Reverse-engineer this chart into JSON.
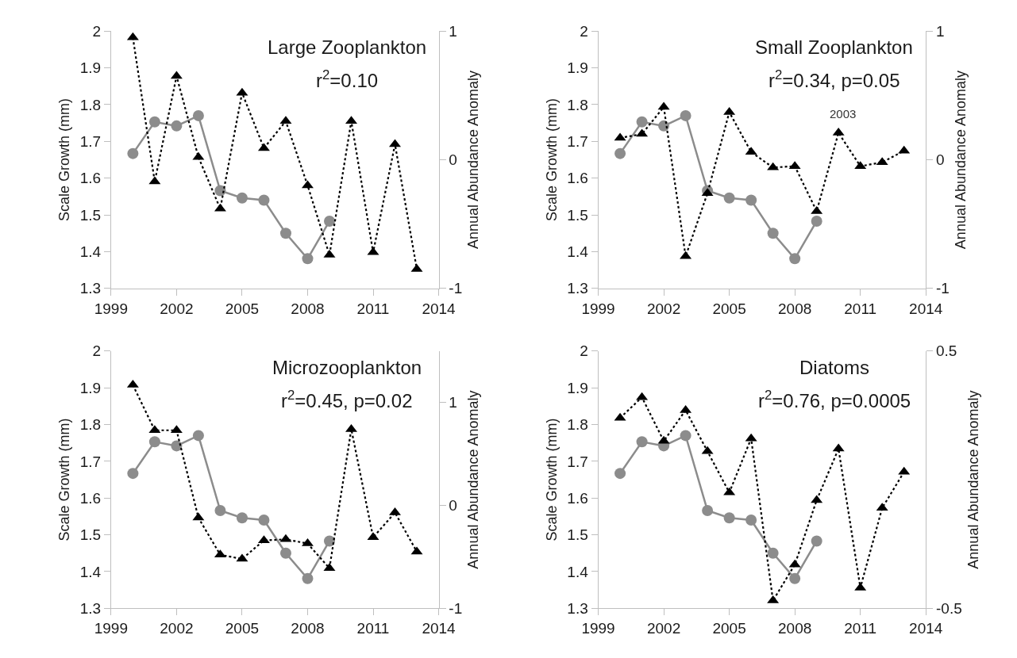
{
  "chart_data": [
    {
      "type": "line",
      "title": "Large Zooplankton",
      "subtitle": "r$^{2}$=0.10",
      "ylabel": "Scale Growth (mm)",
      "y2label": "Annual Abundance Anomaly",
      "xlim": [
        1999,
        2014
      ],
      "xticks": [
        1999,
        2002,
        2005,
        2008,
        2011,
        2014
      ],
      "ylim": [
        1.3,
        2
      ],
      "yticks": [
        1.3,
        1.4,
        1.5,
        1.6,
        1.7,
        1.8,
        1.9,
        2
      ],
      "y2lim": [
        -1,
        1
      ],
      "y2ticks": [
        -1,
        0,
        1
      ],
      "grid": false,
      "series": [
        {
          "color": "#8c8c8c",
          "marker": "circle",
          "line_style": "solid",
          "x": [
            2000,
            2001,
            2002,
            2003,
            2004,
            2005,
            2006,
            2007,
            2008,
            2009
          ],
          "values": [
            1.667,
            1.753,
            1.742,
            1.77,
            1.566,
            1.546,
            1.54,
            1.45,
            1.381,
            1.483
          ]
        },
        {
          "color": "#000000",
          "marker": "triangle",
          "line_style": "dotted",
          "axis": "y2",
          "x": [
            2000,
            2001,
            2002,
            2003,
            2004,
            2005,
            2006,
            2007,
            2008,
            2009,
            2010,
            2011,
            2012,
            2013
          ],
          "values": [
            0.95,
            -0.17,
            0.65,
            0.02,
            -0.38,
            0.52,
            0.09,
            0.3,
            -0.2,
            -0.74,
            0.3,
            -0.72,
            0.12,
            -0.85
          ]
        }
      ]
    },
    {
      "type": "line",
      "title": "Small Zooplankton",
      "subtitle": "r$^{2}$=0.34, p=0.05",
      "annotations": [
        "2003"
      ],
      "ylabel": "Scale Growth (mm)",
      "y2label": "Annual Abundance Anomaly",
      "xlim": [
        1999,
        2014
      ],
      "xticks": [
        1999,
        2002,
        2005,
        2008,
        2011,
        2014
      ],
      "ylim": [
        1.3,
        2
      ],
      "yticks": [
        1.3,
        1.4,
        1.5,
        1.6,
        1.7,
        1.8,
        1.9,
        2
      ],
      "y2lim": [
        -1,
        1
      ],
      "y2ticks": [
        -1,
        0,
        1
      ],
      "grid": false,
      "series": [
        {
          "color": "#8c8c8c",
          "marker": "circle",
          "line_style": "solid",
          "x": [
            2000,
            2001,
            2002,
            2003,
            2004,
            2005,
            2006,
            2007,
            2008,
            2009
          ],
          "values": [
            1.667,
            1.753,
            1.742,
            1.77,
            1.566,
            1.546,
            1.54,
            1.45,
            1.381,
            1.483
          ]
        },
        {
          "color": "#000000",
          "marker": "triangle",
          "line_style": "dotted",
          "axis": "y2",
          "x": [
            2000,
            2001,
            2002,
            2003,
            2004,
            2005,
            2006,
            2007,
            2008,
            2009,
            2010,
            2011,
            2012,
            2013
          ],
          "values": [
            0.17,
            0.2,
            0.41,
            -0.75,
            -0.26,
            0.37,
            0.06,
            -0.06,
            -0.05,
            -0.4,
            0.21,
            -0.05,
            -0.02,
            0.07
          ]
        }
      ]
    },
    {
      "type": "line",
      "title": "Microzooplankton",
      "subtitle": "r$^{2}$=0.45, p=0.02",
      "ylabel": "Scale Growth (mm)",
      "y2label": "Annual Abundance Anomaly",
      "xlim": [
        1999,
        2014
      ],
      "xticks": [
        1999,
        2002,
        2005,
        2008,
        2011,
        2014
      ],
      "ylim": [
        1.3,
        2
      ],
      "yticks": [
        1.3,
        1.4,
        1.5,
        1.6,
        1.7,
        1.8,
        1.9,
        2
      ],
      "y2lim": [
        -1,
        1.5
      ],
      "y2ticks": [
        -1,
        0,
        1
      ],
      "grid": false,
      "series": [
        {
          "color": "#8c8c8c",
          "marker": "circle",
          "line_style": "solid",
          "x": [
            2000,
            2001,
            2002,
            2003,
            2004,
            2005,
            2006,
            2007,
            2008,
            2009
          ],
          "values": [
            1.667,
            1.753,
            1.742,
            1.77,
            1.566,
            1.546,
            1.54,
            1.45,
            1.381,
            1.483
          ]
        },
        {
          "color": "#000000",
          "marker": "triangle",
          "line_style": "dotted",
          "axis": "y2",
          "x": [
            2000,
            2001,
            2002,
            2003,
            2004,
            2005,
            2006,
            2007,
            2008,
            2009,
            2010,
            2011,
            2012,
            2013
          ],
          "values": [
            1.17,
            0.73,
            0.73,
            -0.12,
            -0.48,
            -0.52,
            -0.34,
            -0.33,
            -0.37,
            -0.61,
            0.74,
            -0.31,
            -0.07,
            -0.45
          ]
        }
      ]
    },
    {
      "type": "line",
      "title": "Diatoms",
      "subtitle": "r$^{2}$=0.76, p=0.0005",
      "ylabel": "Scale Growth (mm)",
      "y2label": "Annual Abundance Anomaly",
      "xlim": [
        1999,
        2014
      ],
      "xticks": [
        1999,
        2002,
        2005,
        2008,
        2011,
        2014
      ],
      "ylim": [
        1.3,
        2
      ],
      "yticks": [
        1.3,
        1.4,
        1.5,
        1.6,
        1.7,
        1.8,
        1.9,
        2
      ],
      "y2lim": [
        -0.5,
        0.5
      ],
      "y2ticks": [
        -0.5,
        0.5
      ],
      "grid": false,
      "series": [
        {
          "color": "#8c8c8c",
          "marker": "circle",
          "line_style": "solid",
          "x": [
            2000,
            2001,
            2002,
            2003,
            2004,
            2005,
            2006,
            2007,
            2008,
            2009
          ],
          "values": [
            1.667,
            1.753,
            1.742,
            1.77,
            1.566,
            1.546,
            1.54,
            1.45,
            1.381,
            1.483
          ]
        },
        {
          "color": "#000000",
          "marker": "triangle",
          "line_style": "dotted",
          "axis": "y2",
          "x": [
            2000,
            2001,
            2002,
            2003,
            2004,
            2005,
            2006,
            2007,
            2008,
            2009,
            2010,
            2011,
            2012,
            2013
          ],
          "values": [
            0.24,
            0.32,
            0.15,
            0.27,
            0.11,
            -0.05,
            0.16,
            -0.47,
            -0.33,
            -0.08,
            0.12,
            -0.42,
            -0.11,
            0.03
          ]
        }
      ]
    }
  ]
}
